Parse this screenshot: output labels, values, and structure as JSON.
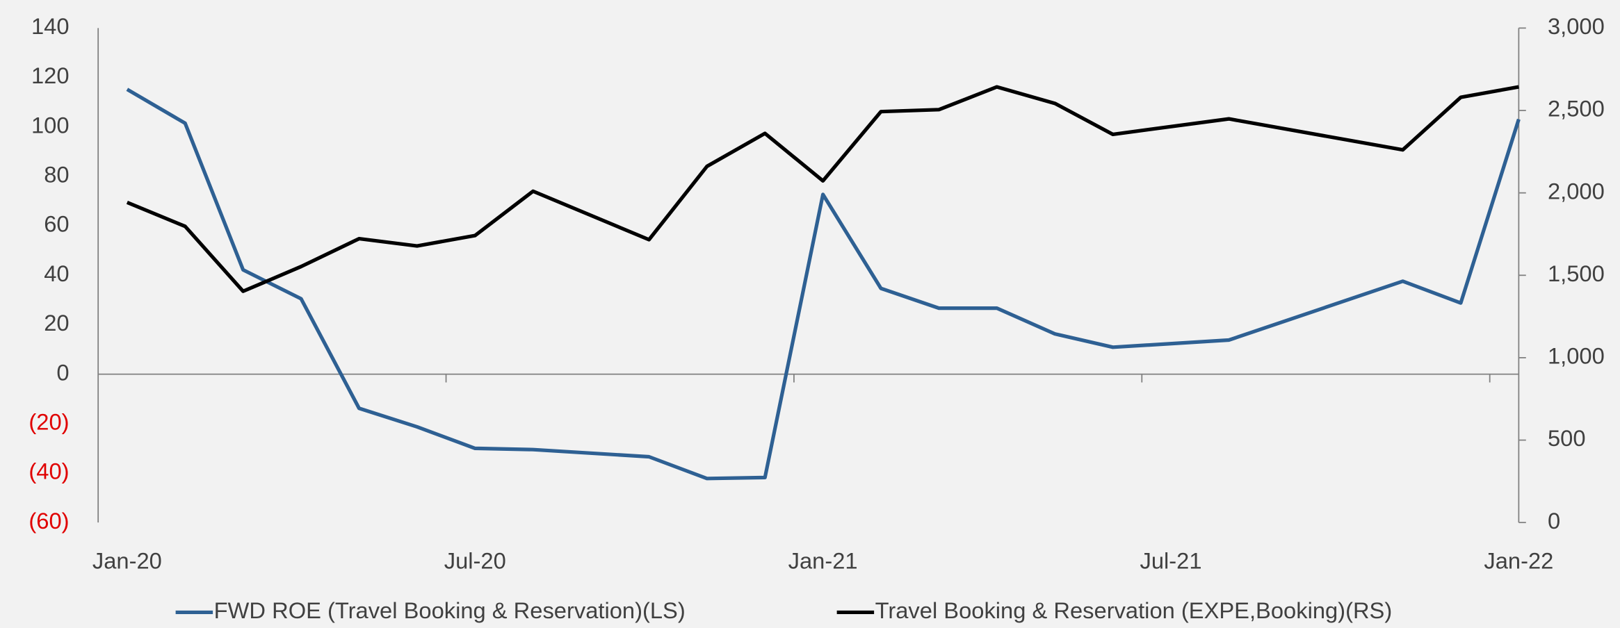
{
  "chart_data": {
    "type": "line",
    "x": [
      "2020-01",
      "2020-02",
      "2020-03",
      "2020-04",
      "2020-05",
      "2020-06",
      "2020-07",
      "2020-08",
      "2020-10",
      "2020-11",
      "2020-12",
      "2021-01",
      "2021-02",
      "2021-03",
      "2021-04",
      "2021-05",
      "2021-06",
      "2021-08",
      "2021-11",
      "2021-12",
      "2022-01"
    ],
    "xticks": [
      {
        "value": "2020-01",
        "label": "Jan-20"
      },
      {
        "value": "2020-07",
        "label": "Jul-20"
      },
      {
        "value": "2021-01",
        "label": "Jan-21"
      },
      {
        "value": "2021-07",
        "label": "Jul-21"
      },
      {
        "value": "2022-01",
        "label": "Jan-22"
      }
    ],
    "xlim": [
      "2020-01",
      "2022-01"
    ],
    "ylim": [
      -60,
      140
    ],
    "yticks": [
      {
        "value": -60,
        "label": "(60)"
      },
      {
        "value": -40,
        "label": "(40)"
      },
      {
        "value": -20,
        "label": "(20)"
      },
      0,
      20,
      40,
      60,
      80,
      100,
      120,
      140
    ],
    "negative_tick_color": "#e00000",
    "y2lim": [
      0,
      3000
    ],
    "y2ticks": [
      0,
      500,
      {
        "value": 1000,
        "label": "1,000"
      },
      {
        "value": 1500,
        "label": "1,500"
      },
      {
        "value": 2000,
        "label": "2,000"
      },
      {
        "value": 2500,
        "label": "2,500"
      },
      {
        "value": 3000,
        "label": "3,000"
      }
    ],
    "grid": false,
    "legend": "bottom",
    "series": [
      {
        "name": "FWD ROE (Travel Booking & Reservation)(LS)",
        "color": "#2e6093",
        "axis": "y",
        "values": [
          115.2,
          101.5,
          42.2,
          30.5,
          -13.8,
          -21.3,
          -30,
          -30.5,
          -33.4,
          -42.2,
          -41.8,
          72.7,
          34.7,
          26.7,
          26.7,
          16.3,
          10.9,
          13.8,
          37.6,
          28.8,
          103.1
        ]
      },
      {
        "name": "Travel Booking & Reservation (EXPE,Booking)(RS)",
        "color": "#000000",
        "axis": "y2",
        "values": [
          1942,
          1797,
          1403,
          1553,
          1722,
          1678,
          1741,
          2010,
          1716,
          2161,
          2361,
          2073,
          2493,
          2505,
          2643,
          2543,
          2355,
          2449,
          2261,
          2580,
          2643
        ]
      }
    ]
  }
}
